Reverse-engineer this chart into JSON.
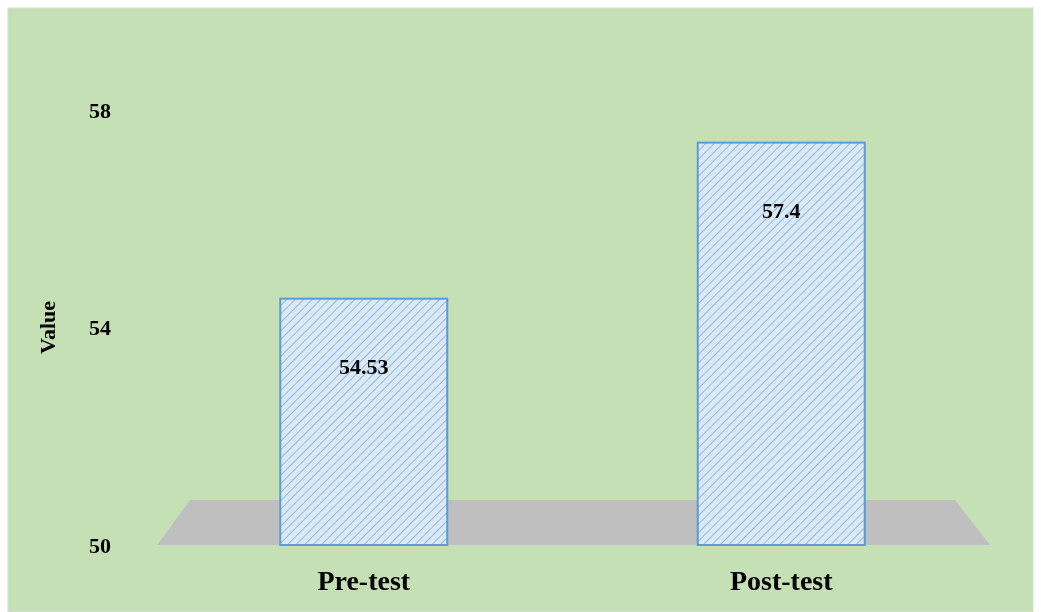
{
  "chart_data": {
    "type": "bar",
    "ylabel": "Value",
    "categories": [
      "Pre-test",
      "Post-test"
    ],
    "values": [
      54.53,
      57.4
    ],
    "color": "#dbe8f6",
    "ylim": [
      50,
      58
    ],
    "yticks": [
      50,
      54,
      58
    ],
    "data_labels": true,
    "grid": false
  }
}
